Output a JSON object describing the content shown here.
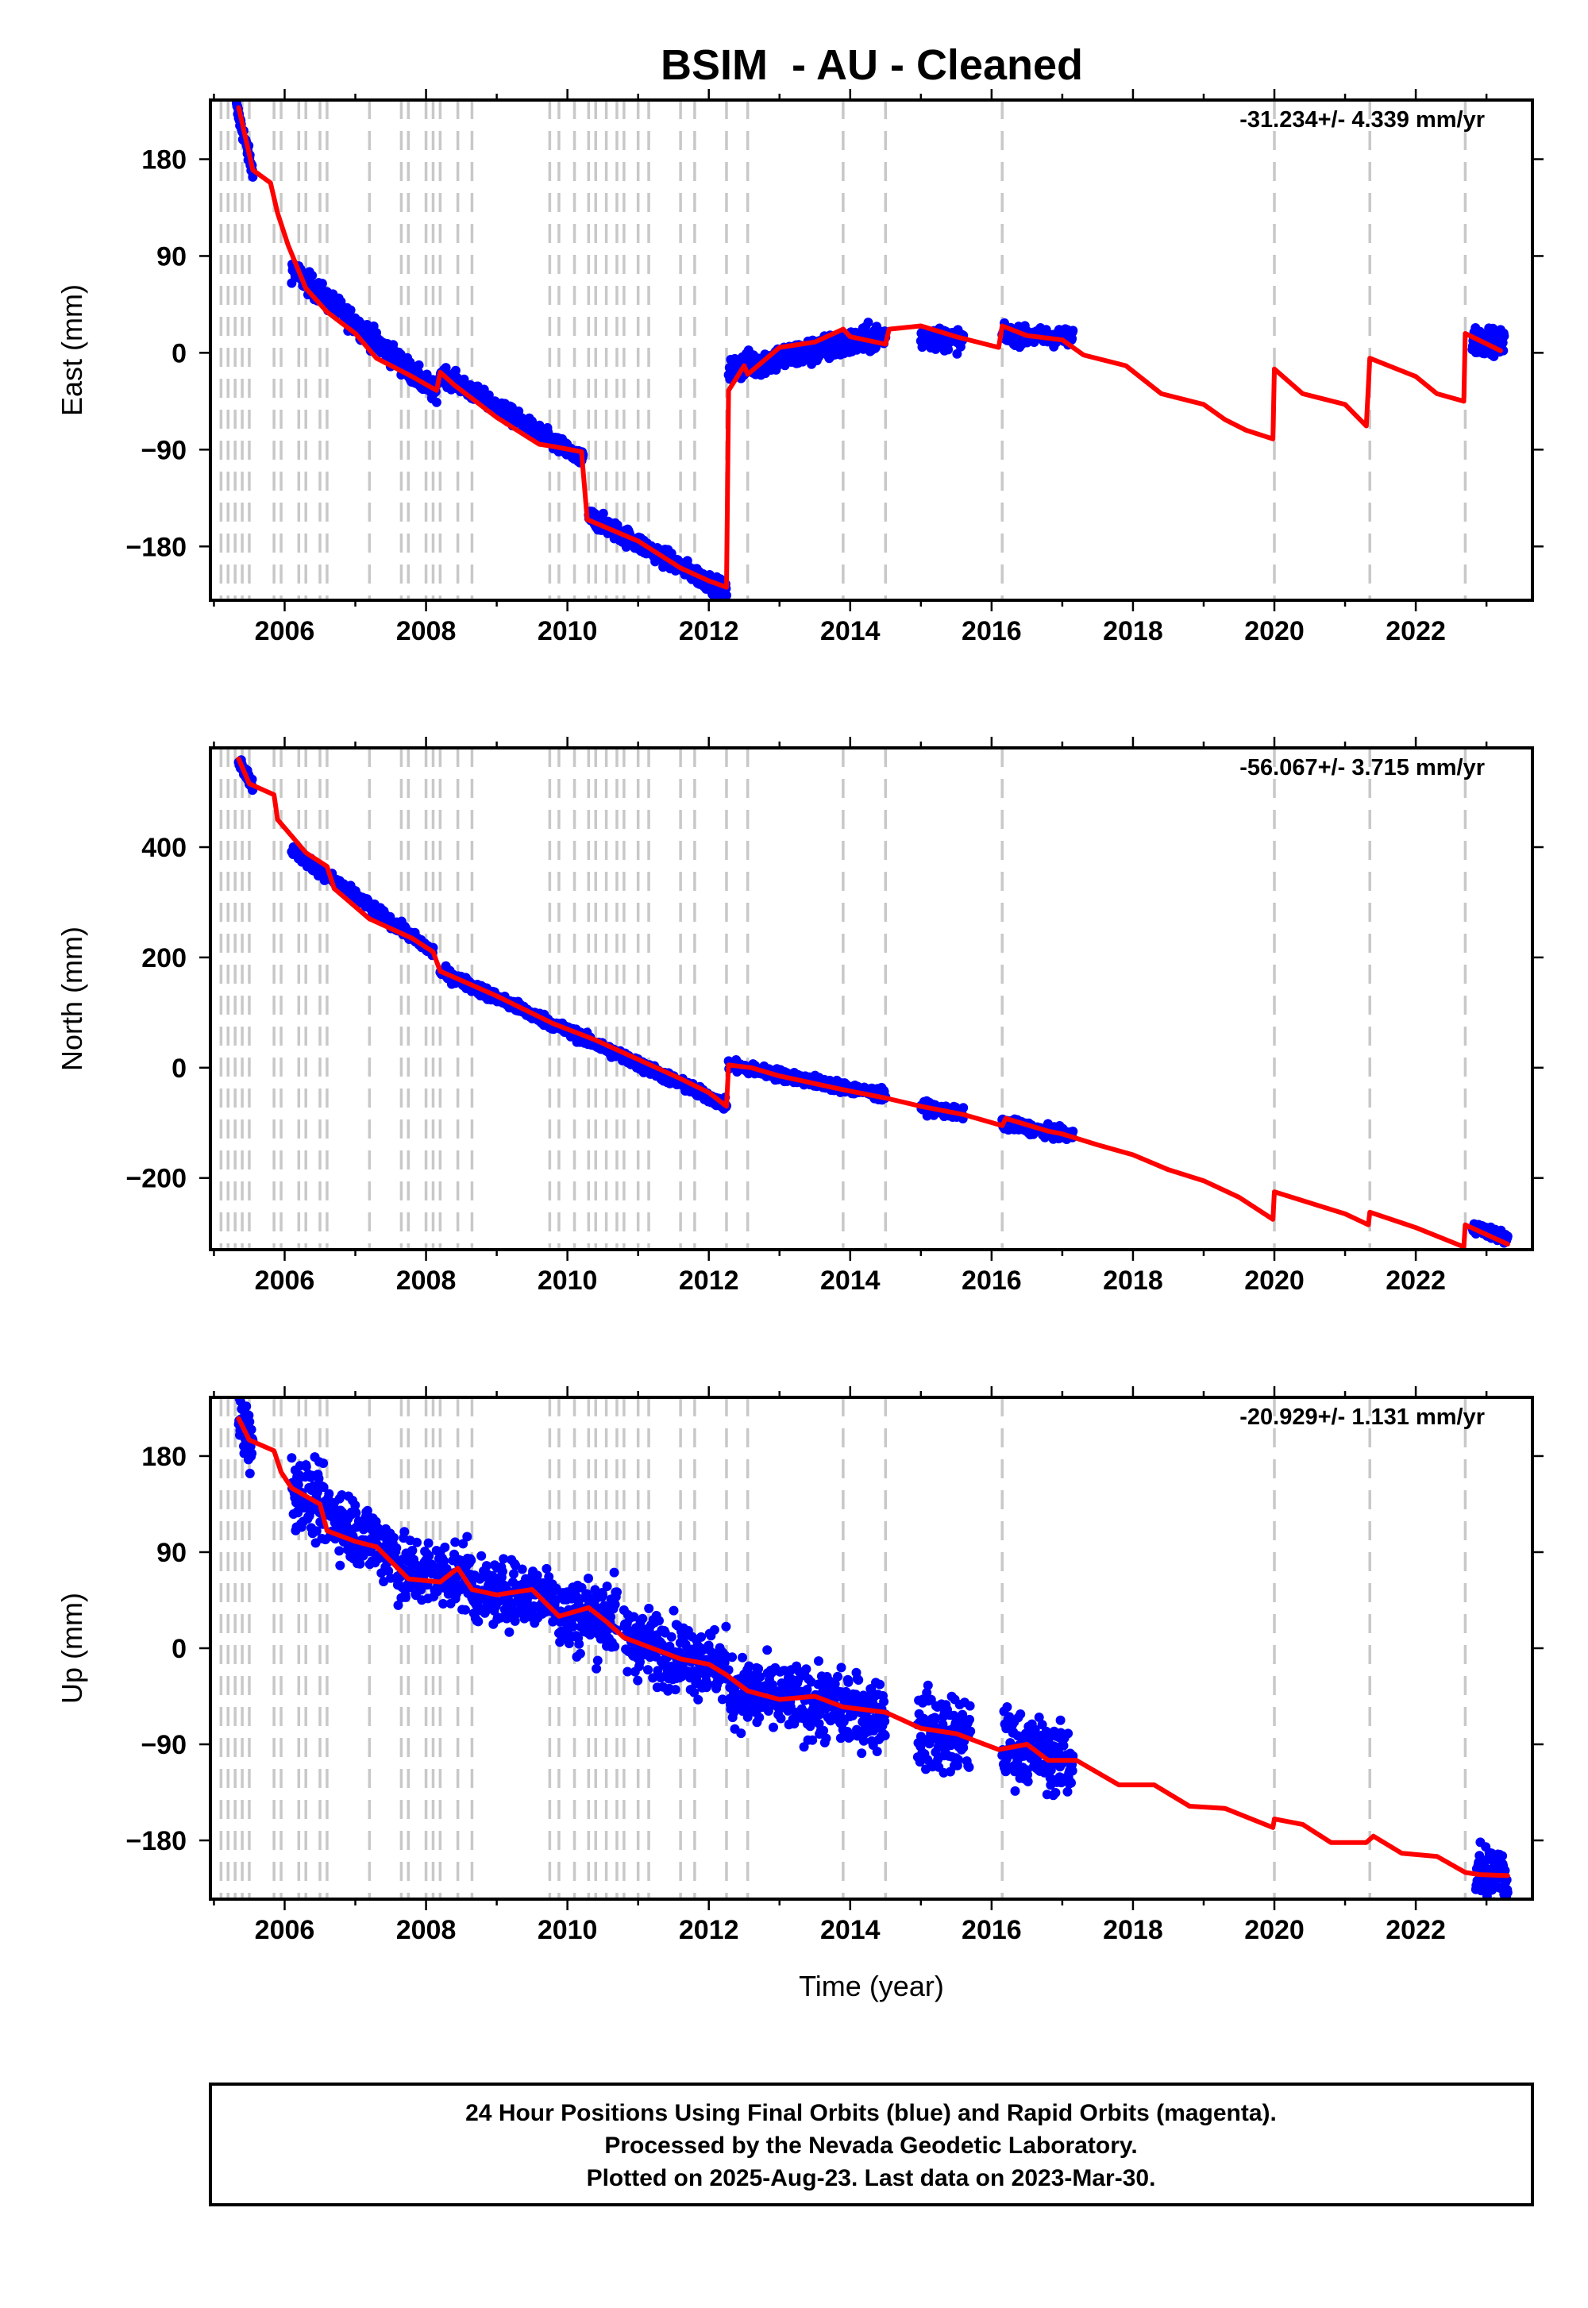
{
  "title": "BSIM  - AU - Cleaned",
  "footer": {
    "lines": [
      "24 Hour Positions Using Final Orbits (blue) and Rapid Orbits (magenta).",
      "Processed by the Nevada Geodetic Laboratory.",
      "Plotted on 2025-Aug-23. Last data on 2023-Mar-30."
    ]
  },
  "colors": {
    "observations": "#0000ff",
    "model": "#ff0000",
    "equipment_changes": "#c8c8c8"
  },
  "chart_data": [
    {
      "type": "scatter",
      "component": "east",
      "ylabel": "East (mm)",
      "xlabel": "",
      "rate_label": "-31.234+/- 4.339 mm/yr",
      "xlim": [
        2004.95,
        2023.65
      ],
      "ylim": [
        -230,
        235
      ],
      "xticks": [
        2006,
        2008,
        2010,
        2012,
        2014,
        2016,
        2018,
        2020,
        2022
      ],
      "yticks": [
        -180,
        -90,
        0,
        90,
        180
      ],
      "ytick_labels": [
        "−180",
        "−90",
        "0",
        "90",
        "180"
      ],
      "discontinuities": [
        2005.1,
        2005.2,
        2005.3,
        2005.4,
        2005.5,
        2005.85,
        2005.95,
        2006.2,
        2006.3,
        2006.5,
        2006.6,
        2007.2,
        2007.65,
        2007.75,
        2008.0,
        2008.1,
        2008.2,
        2008.45,
        2008.65,
        2009.75,
        2009.88,
        2010.1,
        2010.3,
        2010.4,
        2010.55,
        2010.7,
        2010.8,
        2011.0,
        2011.15,
        2011.6,
        2011.8,
        2012.25,
        2012.55,
        2013.9,
        2014.5,
        2016.15,
        2020.0,
        2021.35,
        2022.7
      ],
      "model": [
        [
          2005.35,
          228
        ],
        [
          2005.55,
          170
        ],
        [
          2005.8,
          158
        ],
        [
          2005.9,
          130
        ],
        [
          2006.05,
          100
        ],
        [
          2006.3,
          60
        ],
        [
          2006.6,
          38
        ],
        [
          2007.0,
          18
        ],
        [
          2007.3,
          -5
        ],
        [
          2007.8,
          -22
        ],
        [
          2008.15,
          -35
        ],
        [
          2008.2,
          -18
        ],
        [
          2008.4,
          -30
        ],
        [
          2009.0,
          -60
        ],
        [
          2009.6,
          -85
        ],
        [
          2009.8,
          -87
        ],
        [
          2010.2,
          -92
        ],
        [
          2010.28,
          -155
        ],
        [
          2011.0,
          -175
        ],
        [
          2011.6,
          -200
        ],
        [
          2012.0,
          -212
        ],
        [
          2012.25,
          -218
        ],
        [
          2012.28,
          -35
        ],
        [
          2012.5,
          -12
        ],
        [
          2012.55,
          -20
        ],
        [
          2013.0,
          5
        ],
        [
          2013.5,
          10
        ],
        [
          2013.9,
          22
        ],
        [
          2014.0,
          15
        ],
        [
          2014.5,
          8
        ],
        [
          2014.55,
          22
        ],
        [
          2015.0,
          25
        ],
        [
          2015.5,
          15
        ],
        [
          2016.1,
          5
        ],
        [
          2016.15,
          25
        ],
        [
          2016.5,
          16
        ],
        [
          2017.0,
          12
        ],
        [
          2017.3,
          -2
        ],
        [
          2017.9,
          -12
        ],
        [
          2018.4,
          -38
        ],
        [
          2019.0,
          -48
        ],
        [
          2019.3,
          -62
        ],
        [
          2019.6,
          -72
        ],
        [
          2019.98,
          -80
        ],
        [
          2020.0,
          -15
        ],
        [
          2020.4,
          -38
        ],
        [
          2021.0,
          -48
        ],
        [
          2021.3,
          -68
        ],
        [
          2021.35,
          -5
        ],
        [
          2022.0,
          -22
        ],
        [
          2022.3,
          -38
        ],
        [
          2022.68,
          -45
        ],
        [
          2022.7,
          18
        ],
        [
          2023.2,
          2
        ]
      ],
      "obs_segments": [
        {
          "x": [
            2005.32,
            2005.55
          ],
          "y": [
            228,
            168
          ],
          "scatter": 4
        },
        {
          "x": [
            2006.1,
            2008.15
          ],
          "y": [
            78,
            -38
          ],
          "scatter": 5
        },
        {
          "x": [
            2008.2,
            2010.22
          ],
          "y": [
            -18,
            -100
          ],
          "scatter": 4
        },
        {
          "x": [
            2010.3,
            2012.25
          ],
          "y": [
            -152,
            -222
          ],
          "scatter": 4
        },
        {
          "x": [
            2012.28,
            2014.5
          ],
          "y": [
            -15,
            16
          ],
          "scatter": 6
        },
        {
          "x": [
            2015.0,
            2015.6
          ],
          "y": [
            14,
            12
          ],
          "scatter": 5
        },
        {
          "x": [
            2016.15,
            2017.15
          ],
          "y": [
            16,
            14
          ],
          "scatter": 4
        },
        {
          "x": [
            2022.8,
            2023.25
          ],
          "y": [
            14,
            8
          ],
          "scatter": 6
        }
      ]
    },
    {
      "type": "scatter",
      "component": "north",
      "ylabel": "North (mm)",
      "xlabel": "",
      "rate_label": "-56.067+/- 3.715 mm/yr",
      "xlim": [
        2004.95,
        2023.65
      ],
      "ylim": [
        -330,
        580
      ],
      "xticks": [
        2006,
        2008,
        2010,
        2012,
        2014,
        2016,
        2018,
        2020,
        2022
      ],
      "yticks": [
        -200,
        0,
        200,
        400
      ],
      "ytick_labels": [
        "−200",
        "0",
        "200",
        "400"
      ],
      "discontinuities": [
        2005.1,
        2005.2,
        2005.3,
        2005.4,
        2005.5,
        2005.85,
        2005.95,
        2006.2,
        2006.3,
        2006.5,
        2006.6,
        2007.2,
        2007.65,
        2007.75,
        2008.0,
        2008.1,
        2008.2,
        2008.45,
        2008.65,
        2009.75,
        2009.88,
        2010.1,
        2010.3,
        2010.4,
        2010.55,
        2010.7,
        2010.8,
        2011.0,
        2011.15,
        2011.6,
        2011.8,
        2012.25,
        2012.55,
        2013.9,
        2014.5,
        2016.15,
        2020.0,
        2021.35,
        2022.7
      ],
      "model": [
        [
          2005.35,
          560
        ],
        [
          2005.5,
          515
        ],
        [
          2005.85,
          495
        ],
        [
          2005.9,
          450
        ],
        [
          2006.1,
          420
        ],
        [
          2006.3,
          390
        ],
        [
          2006.6,
          365
        ],
        [
          2006.7,
          325
        ],
        [
          2007.2,
          270
        ],
        [
          2007.8,
          235
        ],
        [
          2008.1,
          210
        ],
        [
          2008.2,
          175
        ],
        [
          2009.0,
          130
        ],
        [
          2009.8,
          80
        ],
        [
          2010.4,
          50
        ],
        [
          2011.0,
          15
        ],
        [
          2011.6,
          -20
        ],
        [
          2012.0,
          -45
        ],
        [
          2012.25,
          -70
        ],
        [
          2012.28,
          5
        ],
        [
          2012.6,
          0
        ],
        [
          2013.0,
          -15
        ],
        [
          2013.9,
          -40
        ],
        [
          2014.5,
          -55
        ],
        [
          2015.0,
          -70
        ],
        [
          2015.6,
          -85
        ],
        [
          2016.15,
          -105
        ],
        [
          2016.2,
          -92
        ],
        [
          2016.8,
          -115
        ],
        [
          2017.0,
          -120
        ],
        [
          2017.5,
          -140
        ],
        [
          2018.0,
          -158
        ],
        [
          2018.5,
          -185
        ],
        [
          2019.0,
          -205
        ],
        [
          2019.5,
          -235
        ],
        [
          2019.98,
          -275
        ],
        [
          2020.0,
          -225
        ],
        [
          2020.5,
          -245
        ],
        [
          2021.0,
          -265
        ],
        [
          2021.33,
          -285
        ],
        [
          2021.35,
          -262
        ],
        [
          2022.0,
          -290
        ],
        [
          2022.68,
          -325
        ],
        [
          2022.7,
          -285
        ],
        [
          2023.3,
          -320
        ]
      ],
      "obs_segments": [
        {
          "x": [
            2005.35,
            2005.55
          ],
          "y": [
            560,
            512
          ],
          "scatter": 6
        },
        {
          "x": [
            2006.1,
            2008.1
          ],
          "y": [
            395,
            210
          ],
          "scatter": 5
        },
        {
          "x": [
            2008.2,
            2012.25
          ],
          "y": [
            175,
            -68
          ],
          "scatter": 5
        },
        {
          "x": [
            2012.28,
            2014.5
          ],
          "y": [
            5,
            -50
          ],
          "scatter": 5
        },
        {
          "x": [
            2015.0,
            2015.6
          ],
          "y": [
            -70,
            -85
          ],
          "scatter": 5
        },
        {
          "x": [
            2016.15,
            2017.15
          ],
          "y": [
            -100,
            -125
          ],
          "scatter": 5
        },
        {
          "x": [
            2022.8,
            2023.3
          ],
          "y": [
            -288,
            -310
          ],
          "scatter": 5
        }
      ]
    },
    {
      "type": "scatter",
      "component": "up",
      "ylabel": "Up (mm)",
      "xlabel": "Time (year)",
      "rate_label": "-20.929+/- 1.131 mm/yr",
      "xlim": [
        2004.95,
        2023.65
      ],
      "ylim": [
        -235,
        235
      ],
      "xticks": [
        2006,
        2008,
        2010,
        2012,
        2014,
        2016,
        2018,
        2020,
        2022
      ],
      "yticks": [
        -180,
        -90,
        0,
        90,
        180
      ],
      "ytick_labels": [
        "−180",
        "−90",
        "0",
        "90",
        "180"
      ],
      "discontinuities": [
        2005.1,
        2005.2,
        2005.3,
        2005.4,
        2005.5,
        2005.85,
        2005.95,
        2006.2,
        2006.3,
        2006.5,
        2006.6,
        2007.2,
        2007.65,
        2007.75,
        2008.0,
        2008.1,
        2008.2,
        2008.45,
        2008.65,
        2009.75,
        2009.88,
        2010.1,
        2010.3,
        2010.4,
        2010.55,
        2010.7,
        2010.8,
        2011.0,
        2011.15,
        2011.6,
        2011.8,
        2012.25,
        2012.55,
        2013.9,
        2014.5,
        2016.15,
        2020.0,
        2021.35,
        2022.7
      ],
      "model": [
        [
          2005.35,
          215
        ],
        [
          2005.5,
          195
        ],
        [
          2005.85,
          185
        ],
        [
          2005.95,
          165
        ],
        [
          2006.1,
          150
        ],
        [
          2006.5,
          135
        ],
        [
          2006.6,
          110
        ],
        [
          2007.0,
          100
        ],
        [
          2007.3,
          95
        ],
        [
          2007.6,
          75
        ],
        [
          2007.75,
          65
        ],
        [
          2008.2,
          62
        ],
        [
          2008.45,
          75
        ],
        [
          2008.65,
          55
        ],
        [
          2009.0,
          50
        ],
        [
          2009.5,
          55
        ],
        [
          2009.88,
          30
        ],
        [
          2010.3,
          38
        ],
        [
          2010.55,
          25
        ],
        [
          2010.8,
          10
        ],
        [
          2011.2,
          0
        ],
        [
          2011.6,
          -10
        ],
        [
          2012.0,
          -15
        ],
        [
          2012.25,
          -25
        ],
        [
          2012.55,
          -40
        ],
        [
          2013.0,
          -48
        ],
        [
          2013.5,
          -45
        ],
        [
          2013.9,
          -55
        ],
        [
          2014.5,
          -60
        ],
        [
          2015.0,
          -75
        ],
        [
          2015.5,
          -80
        ],
        [
          2016.1,
          -95
        ],
        [
          2016.5,
          -90
        ],
        [
          2016.8,
          -105
        ],
        [
          2017.2,
          -105
        ],
        [
          2017.8,
          -128
        ],
        [
          2018.3,
          -128
        ],
        [
          2018.8,
          -148
        ],
        [
          2019.3,
          -150
        ],
        [
          2019.98,
          -168
        ],
        [
          2020.0,
          -160
        ],
        [
          2020.4,
          -165
        ],
        [
          2020.8,
          -182
        ],
        [
          2021.3,
          -182
        ],
        [
          2021.4,
          -176
        ],
        [
          2021.8,
          -192
        ],
        [
          2022.3,
          -195
        ],
        [
          2022.7,
          -210
        ],
        [
          2022.9,
          -212
        ],
        [
          2023.3,
          -213
        ]
      ],
      "obs_segments": [
        {
          "x": [
            2005.35,
            2005.55
          ],
          "y": [
            215,
            190
          ],
          "scatter": 14
        },
        {
          "x": [
            2006.1,
            2007.6
          ],
          "y": [
            150,
            85
          ],
          "scatter": 16
        },
        {
          "x": [
            2007.6,
            2008.65
          ],
          "y": [
            72,
            68
          ],
          "scatter": 16
        },
        {
          "x": [
            2008.65,
            2009.85
          ],
          "y": [
            52,
            50
          ],
          "scatter": 14
        },
        {
          "x": [
            2009.88,
            2010.7
          ],
          "y": [
            32,
            30
          ],
          "scatter": 18
        },
        {
          "x": [
            2010.8,
            2012.25
          ],
          "y": [
            10,
            -18
          ],
          "scatter": 16
        },
        {
          "x": [
            2012.28,
            2014.5
          ],
          "y": [
            -40,
            -62
          ],
          "scatter": 16
        },
        {
          "x": [
            2014.95,
            2015.7
          ],
          "y": [
            -75,
            -85
          ],
          "scatter": 18
        },
        {
          "x": [
            2016.15,
            2017.15
          ],
          "y": [
            -88,
            -108
          ],
          "scatter": 16
        },
        {
          "x": [
            2022.85,
            2023.3
          ],
          "y": [
            -210,
            -212
          ],
          "scatter": 14
        }
      ]
    }
  ]
}
